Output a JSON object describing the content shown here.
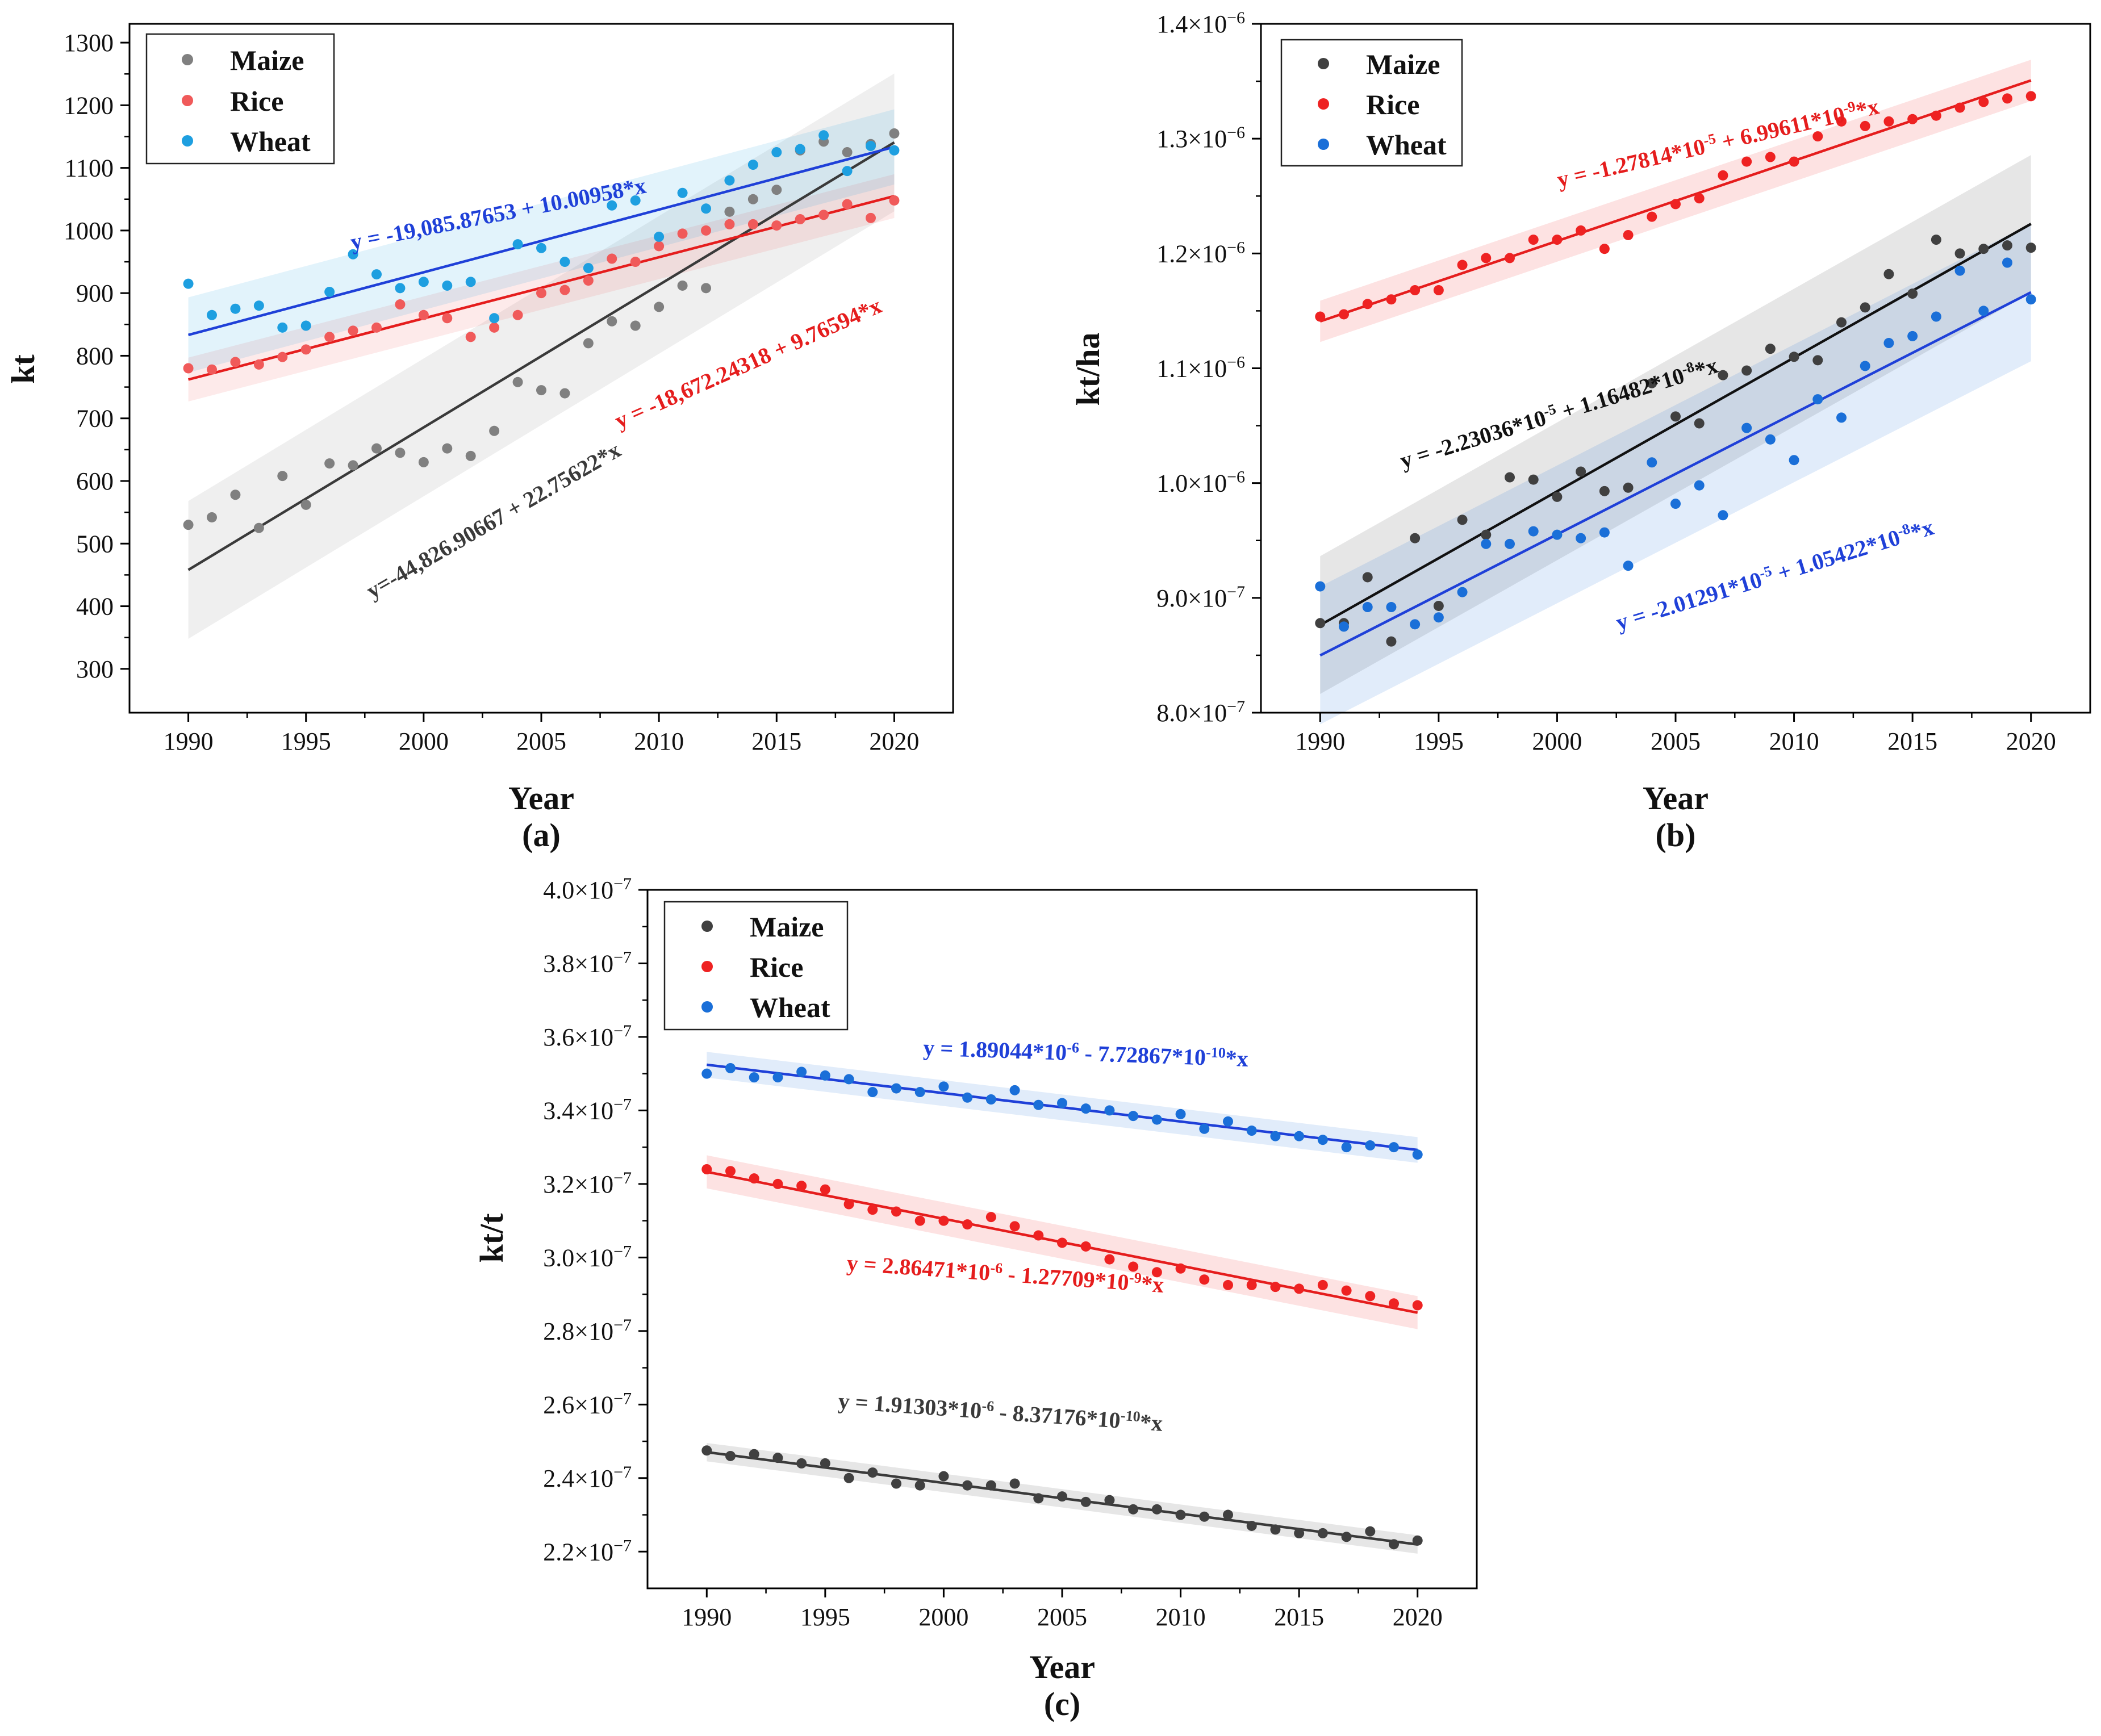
{
  "chart_data": [
    {
      "panel_label": "(a)",
      "type": "scatter",
      "xlabel": "Year",
      "ylabel": "kt",
      "xlim": [
        1987.5,
        2022.5
      ],
      "ylim": [
        230,
        1330
      ],
      "xticks": [
        1990,
        1995,
        2000,
        2005,
        2010,
        2015,
        2020
      ],
      "x_tick_labels": [
        "1990",
        "1995",
        "2000",
        "2005",
        "2010",
        "2015",
        "2020"
      ],
      "yticks": [
        300,
        400,
        500,
        600,
        700,
        800,
        900,
        1000,
        1100,
        1200,
        1300
      ],
      "y_tick_labels": [
        "300",
        "400",
        "500",
        "600",
        "700",
        "800",
        "900",
        "1000",
        "1100",
        "1200",
        "1300"
      ],
      "x": [
        1990,
        1991,
        1992,
        1993,
        1994,
        1995,
        1996,
        1997,
        1998,
        1999,
        2000,
        2001,
        2002,
        2003,
        2004,
        2005,
        2006,
        2007,
        2008,
        2009,
        2010,
        2011,
        2012,
        2013,
        2014,
        2015,
        2016,
        2017,
        2018,
        2019,
        2020
      ],
      "series": [
        {
          "name": "Maize",
          "color": "#808080",
          "values": [
            530,
            542,
            578,
            525,
            608,
            562,
            628,
            625,
            652,
            645,
            630,
            652,
            640,
            680,
            758,
            745,
            740,
            820,
            855,
            848,
            878,
            912,
            908,
            1030,
            1050,
            1065,
            1128,
            1142,
            1125,
            1138,
            1155
          ],
          "fit": {
            "intercept": -44826.90667,
            "slope": 22.75622,
            "band": 110
          },
          "equation": "y=-44,826.90667 + 22.75622*x",
          "equation_color": "#3a3a3a"
        },
        {
          "name": "Rice",
          "color": "#f05a5a",
          "values": [
            780,
            778,
            790,
            786,
            798,
            810,
            830,
            840,
            845,
            882,
            865,
            860,
            830,
            845,
            865,
            900,
            905,
            920,
            955,
            950,
            975,
            995,
            1000,
            1010,
            1010,
            1008,
            1018,
            1025,
            1042,
            1020,
            1048
          ],
          "fit": {
            "intercept": -18672.24318,
            "slope": 9.76594,
            "band": 35
          },
          "equation": "y = -18,672.24318 + 9.76594*x",
          "equation_color": "#e51d1d"
        },
        {
          "name": "Wheat",
          "color": "#1e9fe0",
          "values": [
            915,
            865,
            875,
            880,
            845,
            848,
            902,
            962,
            930,
            908,
            918,
            912,
            918,
            860,
            978,
            972,
            950,
            940,
            1040,
            1048,
            990,
            1060,
            1035,
            1080,
            1105,
            1125,
            1130,
            1152,
            1095,
            1135,
            1128
          ],
          "fit": {
            "intercept": -19085.87653,
            "slope": 10.00958,
            "band": 60
          },
          "equation": "y = -19,085.87653 + 10.00958*x",
          "equation_color": "#1f40d8"
        }
      ]
    },
    {
      "panel_label": "(b)",
      "type": "scatter",
      "xlabel": "Year",
      "ylabel": "kt/ha",
      "xlim": [
        1987.5,
        2022.5
      ],
      "ylim": [
        8e-07,
        1.4e-06
      ],
      "xticks": [
        1990,
        1995,
        2000,
        2005,
        2010,
        2015,
        2020
      ],
      "x_tick_labels": [
        "1990",
        "1995",
        "2000",
        "2005",
        "2010",
        "2015",
        "2020"
      ],
      "yticks": [
        8e-07,
        9e-07,
        1e-06,
        1.1e-06,
        1.2e-06,
        1.3e-06,
        1.4e-06
      ],
      "y_tick_labels": [
        {
          "mant": "8.0×10",
          "exp": "−7"
        },
        {
          "mant": "9.0×10",
          "exp": "−7"
        },
        {
          "mant": "1.0×10",
          "exp": "−6"
        },
        {
          "mant": "1.1×10",
          "exp": "−6"
        },
        {
          "mant": "1.2×10",
          "exp": "−6"
        },
        {
          "mant": "1.3×10",
          "exp": "−6"
        },
        {
          "mant": "1.4×10",
          "exp": "−6"
        }
      ],
      "x": [
        1990,
        1991,
        1992,
        1993,
        1994,
        1995,
        1996,
        1997,
        1998,
        1999,
        2000,
        2001,
        2002,
        2003,
        2004,
        2005,
        2006,
        2007,
        2008,
        2009,
        2010,
        2011,
        2012,
        2013,
        2014,
        2015,
        2016,
        2017,
        2018,
        2019,
        2020
      ],
      "series": [
        {
          "name": "Maize",
          "color": "#404040",
          "values": [
            8.78e-07,
            8.78e-07,
            9.18e-07,
            8.62e-07,
            9.52e-07,
            8.93e-07,
            9.68e-07,
            9.55e-07,
            1.005e-06,
            1.003e-06,
            9.88e-07,
            1.01e-06,
            9.93e-07,
            9.96e-07,
            1.087e-06,
            1.058e-06,
            1.052e-06,
            1.094e-06,
            1.098e-06,
            1.117e-06,
            1.11e-06,
            1.107e-06,
            1.14e-06,
            1.153e-06,
            1.182e-06,
            1.165e-06,
            1.212e-06,
            1.2e-06,
            1.204e-06,
            1.207e-06,
            1.205e-06
          ],
          "fit": {
            "intercept": -2.23036e-05,
            "slope": 1.16482e-08,
            "band": 6e-08
          },
          "equation_main": "y = -2.23036*10",
          "equation_exp1": "-5",
          "equation_mid": " + 1.16482*10",
          "equation_exp2": "-8",
          "equation_tail": "*x",
          "equation_color": "#111111"
        },
        {
          "name": "Rice",
          "color": "#ee2222",
          "values": [
            1.145e-06,
            1.147e-06,
            1.156e-06,
            1.16e-06,
            1.168e-06,
            1.168e-06,
            1.19e-06,
            1.196e-06,
            1.196e-06,
            1.212e-06,
            1.212e-06,
            1.22e-06,
            1.204e-06,
            1.216e-06,
            1.232e-06,
            1.243e-06,
            1.248e-06,
            1.268e-06,
            1.28e-06,
            1.284e-06,
            1.28e-06,
            1.302e-06,
            1.315e-06,
            1.311e-06,
            1.315e-06,
            1.317e-06,
            1.32e-06,
            1.327e-06,
            1.332e-06,
            1.335e-06,
            1.337e-06
          ],
          "fit": {
            "intercept": -1.27814e-05,
            "slope": 6.99611e-09,
            "band": 1.8e-08
          },
          "equation_main": "y = -1.27814*10",
          "equation_exp1": "-5",
          "equation_mid": " + 6.99611*10",
          "equation_exp2": "-9",
          "equation_tail": "*x",
          "equation_color": "#e51d1d"
        },
        {
          "name": "Wheat",
          "color": "#1a6fd8",
          "values": [
            9.1e-07,
            8.75e-07,
            8.92e-07,
            8.92e-07,
            8.77e-07,
            8.83e-07,
            9.05e-07,
            9.47e-07,
            9.47e-07,
            9.58e-07,
            9.55e-07,
            9.52e-07,
            9.57e-07,
            9.28e-07,
            1.018e-06,
            9.82e-07,
            9.98e-07,
            9.72e-07,
            1.048e-06,
            1.038e-06,
            1.02e-06,
            1.073e-06,
            1.057e-06,
            1.102e-06,
            1.122e-06,
            1.128e-06,
            1.145e-06,
            1.185e-06,
            1.15e-06,
            1.192e-06,
            1.16e-06
          ],
          "fit": {
            "intercept": -2.01291e-05,
            "slope": 1.05422e-08,
            "band": 6e-08
          },
          "equation_main": "y = -2.01291*10",
          "equation_exp1": "-5",
          "equation_mid": " + 1.05422*10",
          "equation_exp2": "-8",
          "equation_tail": "*x",
          "equation_color": "#1f40d8"
        }
      ]
    },
    {
      "panel_label": "(c)",
      "type": "scatter",
      "xlabel": "Year",
      "ylabel": "kt/t",
      "xlim": [
        1987.5,
        2022.5
      ],
      "ylim": [
        2.1e-07,
        4e-07
      ],
      "xticks": [
        1990,
        1995,
        2000,
        2005,
        2010,
        2015,
        2020
      ],
      "x_tick_labels": [
        "1990",
        "1995",
        "2000",
        "2005",
        "2010",
        "2015",
        "2020"
      ],
      "yticks": [
        2.2e-07,
        2.4e-07,
        2.6e-07,
        2.8e-07,
        3e-07,
        3.2e-07,
        3.4e-07,
        3.6e-07,
        3.8e-07,
        4e-07
      ],
      "y_tick_labels": [
        {
          "mant": "2.2×10",
          "exp": "−7"
        },
        {
          "mant": "2.4×10",
          "exp": "−7"
        },
        {
          "mant": "2.6×10",
          "exp": "−7"
        },
        {
          "mant": "2.8×10",
          "exp": "−7"
        },
        {
          "mant": "3.0×10",
          "exp": "−7"
        },
        {
          "mant": "3.2×10",
          "exp": "−7"
        },
        {
          "mant": "3.4×10",
          "exp": "−7"
        },
        {
          "mant": "3.6×10",
          "exp": "−7"
        },
        {
          "mant": "3.8×10",
          "exp": "−7"
        },
        {
          "mant": "4.0×10",
          "exp": "−7"
        }
      ],
      "x": [
        1990,
        1991,
        1992,
        1993,
        1994,
        1995,
        1996,
        1997,
        1998,
        1999,
        2000,
        2001,
        2002,
        2003,
        2004,
        2005,
        2006,
        2007,
        2008,
        2009,
        2010,
        2011,
        2012,
        2013,
        2014,
        2015,
        2016,
        2017,
        2018,
        2019,
        2020
      ],
      "series": [
        {
          "name": "Maize",
          "color": "#404040",
          "values": [
            2.475e-07,
            2.46e-07,
            2.465e-07,
            2.455e-07,
            2.44e-07,
            2.44e-07,
            2.4e-07,
            2.415e-07,
            2.385e-07,
            2.38e-07,
            2.405e-07,
            2.38e-07,
            2.38e-07,
            2.385e-07,
            2.345e-07,
            2.35e-07,
            2.335e-07,
            2.34e-07,
            2.315e-07,
            2.315e-07,
            2.3e-07,
            2.295e-07,
            2.3e-07,
            2.27e-07,
            2.26e-07,
            2.25e-07,
            2.25e-07,
            2.24e-07,
            2.255e-07,
            2.22e-07,
            2.23e-07
          ],
          "fit": {
            "intercept": 1.91303e-06,
            "slope": -8.37176e-10,
            "band": 2.5e-09
          },
          "equation_main": "y = 1.91303*10",
          "equation_exp1": "-6",
          "equation_mid": " - 8.37176*10",
          "equation_exp2": "-10",
          "equation_tail": "*x",
          "equation_color": "#3a3a3a"
        },
        {
          "name": "Rice",
          "color": "#ee2222",
          "values": [
            3.24e-07,
            3.235e-07,
            3.215e-07,
            3.2e-07,
            3.195e-07,
            3.185e-07,
            3.145e-07,
            3.13e-07,
            3.125e-07,
            3.1e-07,
            3.1e-07,
            3.09e-07,
            3.11e-07,
            3.085e-07,
            3.06e-07,
            3.04e-07,
            3.03e-07,
            2.995e-07,
            2.975e-07,
            2.96e-07,
            2.97e-07,
            2.94e-07,
            2.925e-07,
            2.925e-07,
            2.92e-07,
            2.915e-07,
            2.925e-07,
            2.91e-07,
            2.895e-07,
            2.875e-07,
            2.87e-07
          ],
          "fit": {
            "intercept": 2.86471e-06,
            "slope": -1.27709e-09,
            "band": 4.5e-09
          },
          "equation_main": "y = 2.86471*10",
          "equation_exp1": "-6",
          "equation_mid": " - 1.27709*10",
          "equation_exp2": "-9",
          "equation_tail": "*x",
          "equation_color": "#e51d1d"
        },
        {
          "name": "Wheat",
          "color": "#1a6fd8",
          "values": [
            3.5e-07,
            3.515e-07,
            3.49e-07,
            3.49e-07,
            3.505e-07,
            3.495e-07,
            3.485e-07,
            3.45e-07,
            3.46e-07,
            3.45e-07,
            3.465e-07,
            3.435e-07,
            3.43e-07,
            3.455e-07,
            3.415e-07,
            3.42e-07,
            3.405e-07,
            3.4e-07,
            3.385e-07,
            3.375e-07,
            3.39e-07,
            3.35e-07,
            3.37e-07,
            3.345e-07,
            3.33e-07,
            3.33e-07,
            3.32e-07,
            3.3e-07,
            3.305e-07,
            3.3e-07,
            3.28e-07
          ],
          "fit": {
            "intercept": 1.89044e-06,
            "slope": -7.72867e-10,
            "band": 3.5e-09
          },
          "equation_main": "y = 1.89044*10",
          "equation_exp1": "-6",
          "equation_mid": " - 7.72867*10",
          "equation_exp2": "-10",
          "equation_tail": "*x",
          "equation_color": "#1f40d8"
        }
      ]
    }
  ]
}
